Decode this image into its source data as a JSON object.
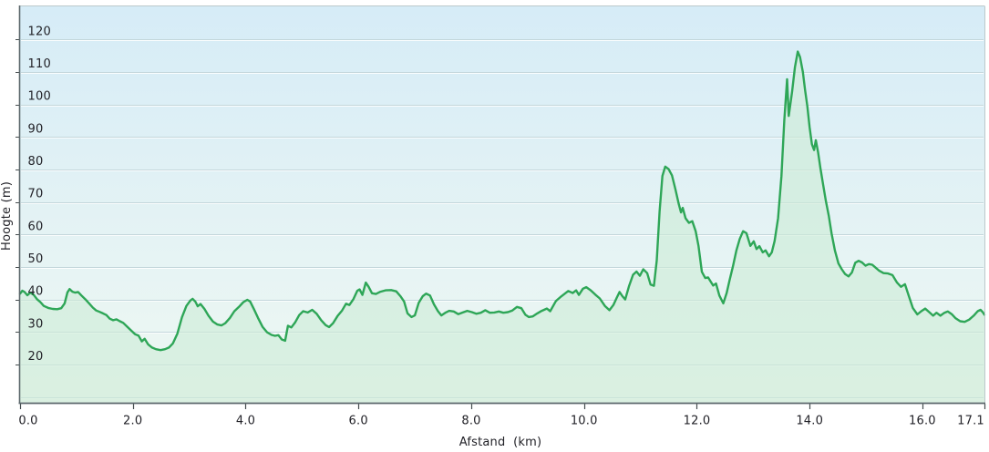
{
  "chart_data": {
    "type": "area",
    "title": "",
    "xlabel": "Afstand  (km)",
    "ylabel": "Hoogte (m)",
    "xlim": [
      0,
      17.1
    ],
    "ylim": [
      8.2,
      130.2
    ],
    "grid": "horizontal",
    "legend": "none",
    "x_ticks": [
      {
        "v": 0,
        "label": "0.0"
      },
      {
        "v": 2,
        "label": "2.0"
      },
      {
        "v": 4,
        "label": "4.0"
      },
      {
        "v": 6,
        "label": "6.0"
      },
      {
        "v": 8,
        "label": "8.0"
      },
      {
        "v": 10,
        "label": "10.0"
      },
      {
        "v": 12,
        "label": "12.0"
      },
      {
        "v": 14,
        "label": "14.0"
      },
      {
        "v": 16,
        "label": "16.0"
      },
      {
        "v": 17.1,
        "label": "17.1"
      }
    ],
    "y_ticks": [
      {
        "v": 20,
        "label": "20"
      },
      {
        "v": 30,
        "label": "30"
      },
      {
        "v": 40,
        "label": "40"
      },
      {
        "v": 50,
        "label": "50"
      },
      {
        "v": 60,
        "label": "60"
      },
      {
        "v": 70,
        "label": "70"
      },
      {
        "v": 80,
        "label": "80"
      },
      {
        "v": 90,
        "label": "90"
      },
      {
        "v": 100,
        "label": "100"
      },
      {
        "v": 110,
        "label": "110"
      },
      {
        "v": 120,
        "label": "120"
      }
    ],
    "unlabeled_gridlines": [
      10
    ],
    "colors": {
      "line": "#2EA657",
      "fill": "#CDEBD6",
      "bg_top": "#D6ECF7",
      "bg_bottom": "#EFF8F2",
      "gridline": "#C3D6DB",
      "gridline_highlight": "#FFFFFF",
      "axis_dark": "#5C686C",
      "axis_light": "#BCC8CB",
      "tick_mark": "#454C4E",
      "text": "#222228"
    },
    "points": [
      [
        0.0,
        41.8
      ],
      [
        0.04,
        42.7
      ],
      [
        0.08,
        42.3
      ],
      [
        0.13,
        41.3
      ],
      [
        0.18,
        42.1
      ],
      [
        0.24,
        41.5
      ],
      [
        0.3,
        40.1
      ],
      [
        0.36,
        39.2
      ],
      [
        0.42,
        38.0
      ],
      [
        0.5,
        37.4
      ],
      [
        0.58,
        37.1
      ],
      [
        0.66,
        37.0
      ],
      [
        0.73,
        37.3
      ],
      [
        0.79,
        38.8
      ],
      [
        0.84,
        42.2
      ],
      [
        0.88,
        43.2
      ],
      [
        0.93,
        42.4
      ],
      [
        0.98,
        42.1
      ],
      [
        1.03,
        42.3
      ],
      [
        1.09,
        41.2
      ],
      [
        1.16,
        40.0
      ],
      [
        1.23,
        38.7
      ],
      [
        1.29,
        37.5
      ],
      [
        1.35,
        36.6
      ],
      [
        1.41,
        36.2
      ],
      [
        1.47,
        35.7
      ],
      [
        1.53,
        35.2
      ],
      [
        1.59,
        34.1
      ],
      [
        1.65,
        33.6
      ],
      [
        1.71,
        33.9
      ],
      [
        1.77,
        33.3
      ],
      [
        1.83,
        32.8
      ],
      [
        1.89,
        31.8
      ],
      [
        1.96,
        30.6
      ],
      [
        2.04,
        29.3
      ],
      [
        2.1,
        28.9
      ],
      [
        2.16,
        27.1
      ],
      [
        2.21,
        27.9
      ],
      [
        2.27,
        26.2
      ],
      [
        2.34,
        25.2
      ],
      [
        2.41,
        24.7
      ],
      [
        2.49,
        24.4
      ],
      [
        2.57,
        24.7
      ],
      [
        2.64,
        25.2
      ],
      [
        2.71,
        26.5
      ],
      [
        2.79,
        29.5
      ],
      [
        2.87,
        34.5
      ],
      [
        2.95,
        38.0
      ],
      [
        3.02,
        39.7
      ],
      [
        3.06,
        40.2
      ],
      [
        3.11,
        39.3
      ],
      [
        3.15,
        37.9
      ],
      [
        3.2,
        38.6
      ],
      [
        3.27,
        37.1
      ],
      [
        3.34,
        35.0
      ],
      [
        3.42,
        33.2
      ],
      [
        3.5,
        32.3
      ],
      [
        3.57,
        32.0
      ],
      [
        3.64,
        32.7
      ],
      [
        3.72,
        34.3
      ],
      [
        3.8,
        36.4
      ],
      [
        3.88,
        37.7
      ],
      [
        3.96,
        39.2
      ],
      [
        4.03,
        39.9
      ],
      [
        4.08,
        39.4
      ],
      [
        4.15,
        36.9
      ],
      [
        4.22,
        34.3
      ],
      [
        4.3,
        31.6
      ],
      [
        4.38,
        29.9
      ],
      [
        4.46,
        29.1
      ],
      [
        4.52,
        28.8
      ],
      [
        4.58,
        29.0
      ],
      [
        4.64,
        27.7
      ],
      [
        4.7,
        27.3
      ],
      [
        4.75,
        31.9
      ],
      [
        4.81,
        31.4
      ],
      [
        4.88,
        33.0
      ],
      [
        4.95,
        35.2
      ],
      [
        5.02,
        36.4
      ],
      [
        5.1,
        36.0
      ],
      [
        5.18,
        36.8
      ],
      [
        5.26,
        35.6
      ],
      [
        5.34,
        33.6
      ],
      [
        5.42,
        32.1
      ],
      [
        5.48,
        31.5
      ],
      [
        5.55,
        32.7
      ],
      [
        5.63,
        34.9
      ],
      [
        5.71,
        36.6
      ],
      [
        5.78,
        38.7
      ],
      [
        5.84,
        38.3
      ],
      [
        5.91,
        40.1
      ],
      [
        5.98,
        42.7
      ],
      [
        6.02,
        43.1
      ],
      [
        6.07,
        41.4
      ],
      [
        6.13,
        45.2
      ],
      [
        6.18,
        43.9
      ],
      [
        6.24,
        41.9
      ],
      [
        6.31,
        41.7
      ],
      [
        6.39,
        42.4
      ],
      [
        6.48,
        42.8
      ],
      [
        6.58,
        42.9
      ],
      [
        6.67,
        42.5
      ],
      [
        6.75,
        40.9
      ],
      [
        6.81,
        39.4
      ],
      [
        6.87,
        35.7
      ],
      [
        6.94,
        34.6
      ],
      [
        7.0,
        35.1
      ],
      [
        7.07,
        39.0
      ],
      [
        7.14,
        41.0
      ],
      [
        7.2,
        41.8
      ],
      [
        7.27,
        41.2
      ],
      [
        7.34,
        38.5
      ],
      [
        7.41,
        36.4
      ],
      [
        7.47,
        35.1
      ],
      [
        7.54,
        35.9
      ],
      [
        7.61,
        36.5
      ],
      [
        7.69,
        36.3
      ],
      [
        7.77,
        35.5
      ],
      [
        7.85,
        36.0
      ],
      [
        7.93,
        36.5
      ],
      [
        8.01,
        36.1
      ],
      [
        8.09,
        35.6
      ],
      [
        8.17,
        35.9
      ],
      [
        8.25,
        36.7
      ],
      [
        8.33,
        35.9
      ],
      [
        8.41,
        36.0
      ],
      [
        8.49,
        36.3
      ],
      [
        8.57,
        35.9
      ],
      [
        8.65,
        36.1
      ],
      [
        8.73,
        36.6
      ],
      [
        8.81,
        37.7
      ],
      [
        8.89,
        37.3
      ],
      [
        8.96,
        35.3
      ],
      [
        9.02,
        34.6
      ],
      [
        9.09,
        34.8
      ],
      [
        9.17,
        35.7
      ],
      [
        9.25,
        36.5
      ],
      [
        9.34,
        37.2
      ],
      [
        9.4,
        36.4
      ],
      [
        9.5,
        39.5
      ],
      [
        9.58,
        40.7
      ],
      [
        9.66,
        41.8
      ],
      [
        9.72,
        42.6
      ],
      [
        9.8,
        42.0
      ],
      [
        9.86,
        42.8
      ],
      [
        9.91,
        41.4
      ],
      [
        9.98,
        43.3
      ],
      [
        10.04,
        43.8
      ],
      [
        10.12,
        42.8
      ],
      [
        10.2,
        41.5
      ],
      [
        10.28,
        40.3
      ],
      [
        10.37,
        38.0
      ],
      [
        10.45,
        36.7
      ],
      [
        10.52,
        38.3
      ],
      [
        10.58,
        40.5
      ],
      [
        10.63,
        42.3
      ],
      [
        10.68,
        41.0
      ],
      [
        10.73,
        40.0
      ],
      [
        10.8,
        44.2
      ],
      [
        10.87,
        47.6
      ],
      [
        10.93,
        48.6
      ],
      [
        10.99,
        47.3
      ],
      [
        11.05,
        49.3
      ],
      [
        11.12,
        48.1
      ],
      [
        11.18,
        44.6
      ],
      [
        11.24,
        44.2
      ],
      [
        11.29,
        52.0
      ],
      [
        11.34,
        67.0
      ],
      [
        11.39,
        78.0
      ],
      [
        11.44,
        80.9
      ],
      [
        11.5,
        80.1
      ],
      [
        11.56,
        78.2
      ],
      [
        11.62,
        74.0
      ],
      [
        11.68,
        69.3
      ],
      [
        11.72,
        66.8
      ],
      [
        11.75,
        68.2
      ],
      [
        11.8,
        65.0
      ],
      [
        11.86,
        63.6
      ],
      [
        11.92,
        64.1
      ],
      [
        11.98,
        61.0
      ],
      [
        12.03,
        56.5
      ],
      [
        12.09,
        48.5
      ],
      [
        12.15,
        46.6
      ],
      [
        12.2,
        46.8
      ],
      [
        12.25,
        45.4
      ],
      [
        12.29,
        44.3
      ],
      [
        12.34,
        44.9
      ],
      [
        12.4,
        41.2
      ],
      [
        12.47,
        38.8
      ],
      [
        12.53,
        42.0
      ],
      [
        12.58,
        45.8
      ],
      [
        12.64,
        50.2
      ],
      [
        12.7,
        55.0
      ],
      [
        12.76,
        58.6
      ],
      [
        12.82,
        61.0
      ],
      [
        12.88,
        60.4
      ],
      [
        12.95,
        56.5
      ],
      [
        13.01,
        57.9
      ],
      [
        13.06,
        55.5
      ],
      [
        13.11,
        56.4
      ],
      [
        13.17,
        54.5
      ],
      [
        13.22,
        55.1
      ],
      [
        13.28,
        53.3
      ],
      [
        13.33,
        54.5
      ],
      [
        13.38,
        58.0
      ],
      [
        13.44,
        65.0
      ],
      [
        13.5,
        78.0
      ],
      [
        13.55,
        95.0
      ],
      [
        13.6,
        107.8
      ],
      [
        13.63,
        96.5
      ],
      [
        13.69,
        104.0
      ],
      [
        13.74,
        111.5
      ],
      [
        13.79,
        116.3
      ],
      [
        13.83,
        114.6
      ],
      [
        13.88,
        110.0
      ],
      [
        13.92,
        104.5
      ],
      [
        13.96,
        99.5
      ],
      [
        14.0,
        93.0
      ],
      [
        14.04,
        87.8
      ],
      [
        14.08,
        86.0
      ],
      [
        14.11,
        89.0
      ],
      [
        14.15,
        85.3
      ],
      [
        14.19,
        80.5
      ],
      [
        14.24,
        75.4
      ],
      [
        14.29,
        70.2
      ],
      [
        14.34,
        65.8
      ],
      [
        14.39,
        60.3
      ],
      [
        14.45,
        55.0
      ],
      [
        14.51,
        51.1
      ],
      [
        14.57,
        49.3
      ],
      [
        14.63,
        47.8
      ],
      [
        14.69,
        47.1
      ],
      [
        14.75,
        48.3
      ],
      [
        14.81,
        51.3
      ],
      [
        14.87,
        51.9
      ],
      [
        14.93,
        51.4
      ],
      [
        14.99,
        50.4
      ],
      [
        15.05,
        50.9
      ],
      [
        15.11,
        50.7
      ],
      [
        15.17,
        49.8
      ],
      [
        15.23,
        48.9
      ],
      [
        15.31,
        48.1
      ],
      [
        15.39,
        48.0
      ],
      [
        15.47,
        47.5
      ],
      [
        15.55,
        45.2
      ],
      [
        15.62,
        43.9
      ],
      [
        15.69,
        44.7
      ],
      [
        15.76,
        41.0
      ],
      [
        15.83,
        37.4
      ],
      [
        15.91,
        35.4
      ],
      [
        15.98,
        36.4
      ],
      [
        16.05,
        37.2
      ],
      [
        16.12,
        36.1
      ],
      [
        16.19,
        35.0
      ],
      [
        16.25,
        35.9
      ],
      [
        16.32,
        35.0
      ],
      [
        16.39,
        35.9
      ],
      [
        16.45,
        36.3
      ],
      [
        16.52,
        35.5
      ],
      [
        16.59,
        34.2
      ],
      [
        16.67,
        33.3
      ],
      [
        16.75,
        33.1
      ],
      [
        16.83,
        33.8
      ],
      [
        16.91,
        35.0
      ],
      [
        16.98,
        36.4
      ],
      [
        17.03,
        36.8
      ],
      [
        17.07,
        36.1
      ],
      [
        17.1,
        35.3
      ]
    ]
  }
}
